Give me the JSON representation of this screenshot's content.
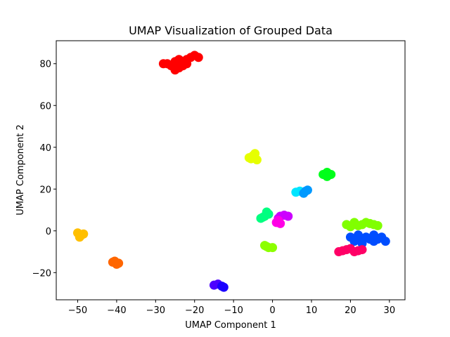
{
  "chart_data": {
    "type": "scatter",
    "title": "UMAP Visualization of Grouped Data",
    "xlabel": "UMAP Component 1",
    "ylabel": "UMAP Component 2",
    "xlim": [
      -55.5,
      34
    ],
    "ylim": [
      -33,
      91
    ],
    "xticks": [
      -50,
      -40,
      -30,
      -20,
      -10,
      0,
      10,
      20,
      30
    ],
    "yticks": [
      -20,
      0,
      20,
      40,
      60,
      80
    ],
    "grid": false,
    "legend": "none",
    "series": [
      {
        "color": "#ff0000",
        "points": [
          [
            -27,
            80
          ],
          [
            -25,
            81
          ],
          [
            -23,
            79
          ],
          [
            -22,
            82
          ],
          [
            -24,
            78
          ],
          [
            -26,
            79
          ],
          [
            -21,
            83
          ],
          [
            -23,
            81
          ],
          [
            -25,
            77
          ],
          [
            -20,
            84
          ],
          [
            -28,
            80
          ],
          [
            -22,
            80
          ],
          [
            -24,
            82
          ],
          [
            -19,
            83
          ]
        ]
      },
      {
        "color": "#e6ff00",
        "points": [
          [
            -6,
            35
          ],
          [
            -5,
            36
          ],
          [
            -4,
            34
          ],
          [
            -4.5,
            37
          ],
          [
            -5.5,
            34.5
          ]
        ]
      },
      {
        "color": "#00ff1a",
        "points": [
          [
            13,
            27
          ],
          [
            14,
            28
          ],
          [
            15,
            27
          ],
          [
            14,
            26
          ]
        ]
      },
      {
        "color": "#00e5ff",
        "points": [
          [
            6,
            18.5
          ],
          [
            7,
            19
          ]
        ]
      },
      {
        "color": "#0099ff",
        "points": [
          [
            8,
            18
          ],
          [
            9,
            19.5
          ],
          [
            8.5,
            19
          ]
        ]
      },
      {
        "color": "#00ff80",
        "points": [
          [
            -3,
            6
          ],
          [
            -2,
            7
          ],
          [
            -1,
            8
          ],
          [
            -1.5,
            9
          ],
          [
            -2.5,
            6.5
          ]
        ]
      },
      {
        "color": "#cc00ff",
        "points": [
          [
            2,
            7
          ],
          [
            3,
            7.5
          ],
          [
            4,
            7
          ],
          [
            1.5,
            6
          ]
        ]
      },
      {
        "color": "#ff00e6",
        "points": [
          [
            1,
            4
          ],
          [
            2,
            3.5
          ],
          [
            1.5,
            5
          ]
        ]
      },
      {
        "color": "#80ff00",
        "points": [
          [
            19,
            3
          ],
          [
            21,
            4
          ],
          [
            23,
            3
          ],
          [
            25,
            3.5
          ],
          [
            27,
            2.5
          ],
          [
            20,
            2
          ],
          [
            22,
            2.5
          ],
          [
            24,
            4
          ],
          [
            26,
            3
          ],
          [
            21,
            3
          ]
        ]
      },
      {
        "color": "#8cff00",
        "points": [
          [
            -2,
            -7
          ],
          [
            -1,
            -8
          ],
          [
            0,
            -8
          ],
          [
            -1.5,
            -7.5
          ]
        ]
      },
      {
        "color": "#004dff",
        "points": [
          [
            20,
            -3
          ],
          [
            22,
            -4
          ],
          [
            24,
            -3
          ],
          [
            26,
            -5
          ],
          [
            28,
            -3
          ],
          [
            21,
            -5
          ],
          [
            23,
            -6
          ],
          [
            25,
            -4
          ],
          [
            27,
            -4
          ],
          [
            29,
            -5
          ],
          [
            22,
            -2
          ],
          [
            26,
            -2
          ]
        ]
      },
      {
        "color": "#ff0066",
        "points": [
          [
            17,
            -10
          ],
          [
            19,
            -9
          ],
          [
            21,
            -10
          ],
          [
            23,
            -9
          ],
          [
            18,
            -9.5
          ],
          [
            20,
            -8.5
          ],
          [
            22,
            -9.5
          ]
        ]
      },
      {
        "color": "#ffbf00",
        "points": [
          [
            -50,
            -1
          ],
          [
            -49,
            -2
          ],
          [
            -49.5,
            -3
          ],
          [
            -48.5,
            -1.5
          ]
        ]
      },
      {
        "color": "#ff6600",
        "points": [
          [
            -41,
            -15
          ],
          [
            -40,
            -16
          ],
          [
            -40.5,
            -14.5
          ],
          [
            -39.5,
            -15.5
          ]
        ]
      },
      {
        "color": "#4d00ff",
        "points": [
          [
            -15,
            -26
          ],
          [
            -14,
            -25.5
          ]
        ]
      },
      {
        "color": "#1a00ff",
        "points": [
          [
            -13,
            -26.5
          ],
          [
            -12.5,
            -27
          ]
        ]
      }
    ]
  }
}
